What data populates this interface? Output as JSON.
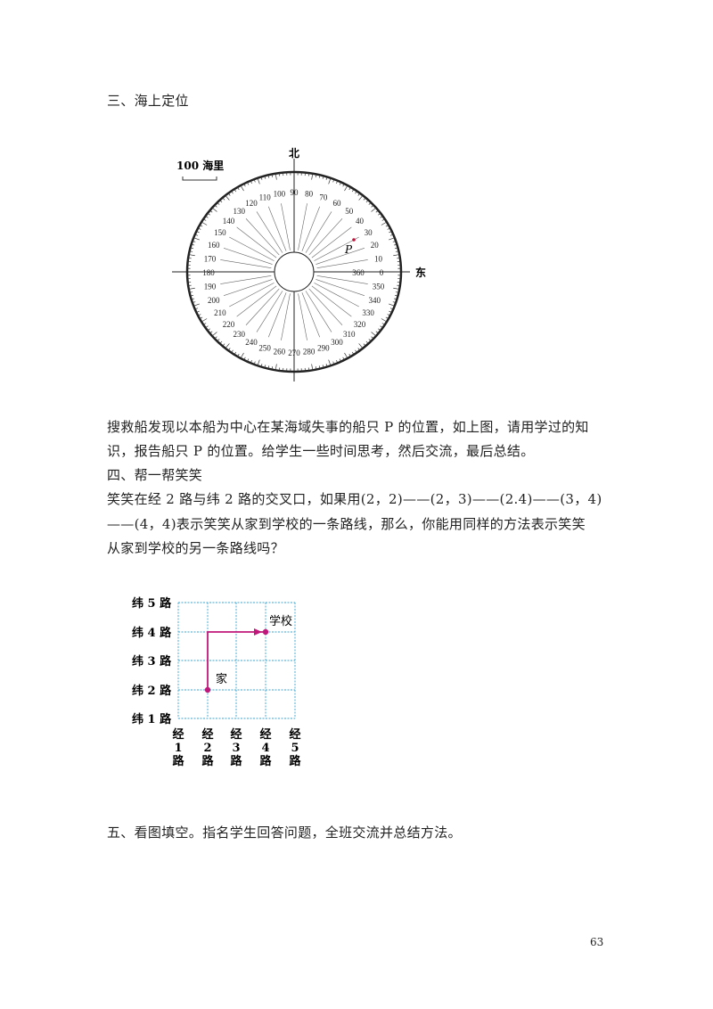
{
  "section3": {
    "title": "三、海上定位",
    "compass": {
      "north_label": "北",
      "east_label": "东",
      "scale_label": "100 海里",
      "point_label": "P",
      "bearings": [
        "0",
        "10",
        "20",
        "30",
        "40",
        "50",
        "60",
        "70",
        "80",
        "90",
        "100",
        "110",
        "120",
        "130",
        "140",
        "150",
        "160",
        "170",
        "180",
        "190",
        "200",
        "210",
        "220",
        "230",
        "240",
        "250",
        "260",
        "270",
        "280",
        "290",
        "300",
        "310",
        "320",
        "330",
        "340",
        "350",
        "360"
      ],
      "point_bearing_deg": 27,
      "point_color": "#c0143c"
    },
    "para": [
      "搜救船发现以本船为中心在某海域失事的船只 P 的位置，如上图，请用学过的知",
      "识，报告船只 P 的位置。给学生一些时间思考，然后交流，最后总结。"
    ]
  },
  "section4": {
    "title": "四、帮一帮笑笑",
    "para": [
      "笑笑在经 2 路与纬 2 路的交叉口，如果用(2，2)——(2，3)——(2.4)——(3，4)",
      "——(4，4)表示笑笑从家到学校的一条路线，那么，你能用同样的方法表示笑笑",
      "从家到学校的另一条路线吗？"
    ],
    "grid": {
      "row_labels": [
        "纬 5 路",
        "纬 4 路",
        "纬 3 路",
        "纬 2 路",
        "纬 1 路"
      ],
      "col_labels": [
        [
          "经",
          "1",
          "路"
        ],
        [
          "经",
          "2",
          "路"
        ],
        [
          "经",
          "3",
          "路"
        ],
        [
          "经",
          "4",
          "路"
        ],
        [
          "经",
          "5",
          "路"
        ]
      ],
      "home_label": "家",
      "school_label": "学校",
      "home": [
        2,
        2
      ],
      "school": [
        4,
        4
      ],
      "route": [
        [
          2,
          2
        ],
        [
          2,
          4
        ],
        [
          4,
          4
        ]
      ],
      "grid_color": "#3aa6d0",
      "route_color": "#c0177a"
    }
  },
  "section5": {
    "title": "五、看图填空。指名学生回答问题，全班交流并总结方法。"
  },
  "page_number": "63"
}
